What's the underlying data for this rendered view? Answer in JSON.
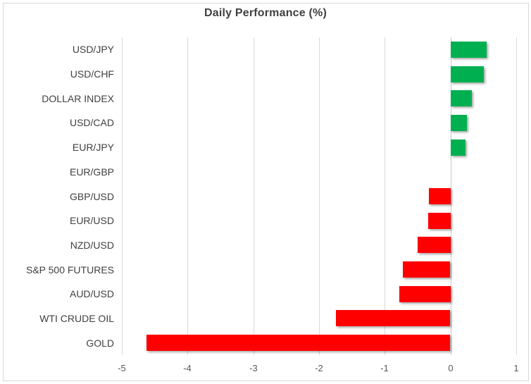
{
  "title": "Daily Performance (%)",
  "colors": {
    "positive_bar": "#00B050",
    "negative_bar": "#FF0000",
    "gridline": "#D9D9D9",
    "zero_axis": "#C9C9C9",
    "title_text": "#404040",
    "category_text": "#404040",
    "tick_text": "#595959",
    "chart_border": "#D9D9D9",
    "background": "#FFFFFF"
  },
  "chart_data": {
    "type": "bar",
    "orientation": "horizontal",
    "title": "Daily Performance (%)",
    "xlabel": "",
    "ylabel": "",
    "categories": [
      "USD/JPY",
      "USD/CHF",
      "DOLLAR INDEX",
      "USD/CAD",
      "EUR/JPY",
      "EUR/GBP",
      "GBP/USD",
      "EUR/USD",
      "NZD/USD",
      "S&P 500 FUTURES",
      "AUD/USD",
      "WTI CRUDE OIL",
      "GOLD"
    ],
    "values": [
      0.55,
      0.5,
      0.32,
      0.25,
      0.22,
      0,
      -0.33,
      -0.34,
      -0.5,
      -0.72,
      -0.78,
      -1.74,
      -4.62
    ],
    "xlim": [
      -5,
      1
    ],
    "xticks": [
      -5,
      -4,
      -3,
      -2,
      -1,
      0,
      1
    ],
    "xtick_labels": [
      "-5",
      "-4",
      "-3",
      "-2",
      "-1",
      "0",
      "1"
    ],
    "grid": "vertical-only",
    "legend": "none",
    "bar_color_rule": "green if positive, red if negative"
  }
}
